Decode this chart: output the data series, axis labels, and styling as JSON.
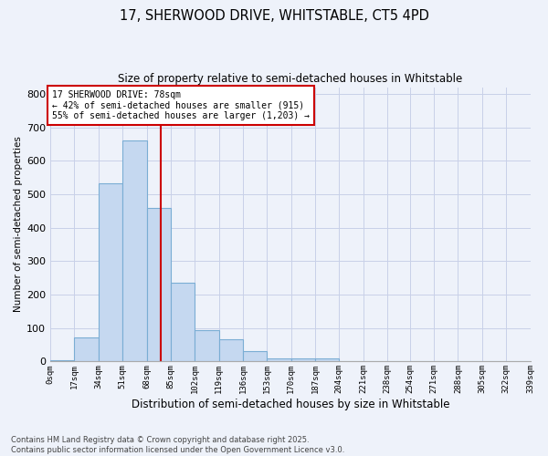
{
  "title_line1": "17, SHERWOOD DRIVE, WHITSTABLE, CT5 4PD",
  "title_line2": "Size of property relative to semi-detached houses in Whitstable",
  "xlabel": "Distribution of semi-detached houses by size in Whitstable",
  "ylabel": "Number of semi-detached properties",
  "property_size": 78,
  "property_label": "17 SHERWOOD DRIVE: 78sqm",
  "pct_smaller": 42,
  "pct_larger": 55,
  "n_smaller": 915,
  "n_larger": 1203,
  "bar_color": "#c5d8f0",
  "bar_edge_color": "#7aadd4",
  "vline_color": "#cc0000",
  "annotation_box_color": "#cc0000",
  "background_color": "#eef2fa",
  "grid_color": "#c8d0e8",
  "bin_edges": [
    0,
    17,
    34,
    51,
    68,
    85,
    102,
    119,
    136,
    153,
    170,
    187,
    204,
    221,
    238,
    254,
    271,
    288,
    305,
    322,
    339
  ],
  "bin_heights": [
    5,
    73,
    533,
    660,
    458,
    236,
    93,
    67,
    32,
    9,
    9,
    8,
    0,
    0,
    0,
    0,
    0,
    0,
    0,
    0
  ],
  "tick_labels": [
    "0sqm",
    "17sqm",
    "34sqm",
    "51sqm",
    "68sqm",
    "85sqm",
    "102sqm",
    "119sqm",
    "136sqm",
    "153sqm",
    "170sqm",
    "187sqm",
    "204sqm",
    "221sqm",
    "238sqm",
    "254sqm",
    "271sqm",
    "288sqm",
    "305sqm",
    "322sqm",
    "339sqm"
  ],
  "ylim": [
    0,
    820
  ],
  "xlim": [
    0,
    339
  ],
  "footnote": "Contains HM Land Registry data © Crown copyright and database right 2025.\nContains public sector information licensed under the Open Government Licence v3.0."
}
